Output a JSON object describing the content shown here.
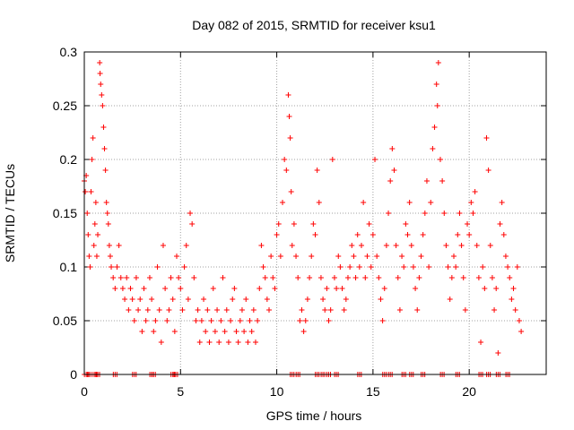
{
  "chart_data": {
    "type": "scatter",
    "title": "Day 082 of 2015, SRMTID for receiver ksu1",
    "xlabel": "GPS time / hours",
    "ylabel": "SRMTID / TECUs",
    "xlim": [
      0,
      24
    ],
    "ylim": [
      0,
      0.3
    ],
    "grid": true,
    "marker": "+",
    "x_ticks": [
      {
        "value": 0,
        "label": "0"
      },
      {
        "value": 5,
        "label": "5"
      },
      {
        "value": 10,
        "label": "10"
      },
      {
        "value": 15,
        "label": "15"
      },
      {
        "value": 20,
        "label": "20"
      }
    ],
    "y_ticks": [
      {
        "value": 0,
        "label": "0"
      },
      {
        "value": 0.05,
        "label": "0.05"
      },
      {
        "value": 0.1,
        "label": "0.1"
      },
      {
        "value": 0.15,
        "label": "0.15"
      },
      {
        "value": 0.2,
        "label": "0.2"
      },
      {
        "value": 0.25,
        "label": "0.25"
      },
      {
        "value": 0.3,
        "label": "0.3"
      }
    ],
    "series": [
      {
        "name": "SRMTID",
        "color": "#ff0000",
        "points": [
          [
            0.0,
            0.18
          ],
          [
            0.05,
            0.17
          ],
          [
            0.1,
            0.185
          ],
          [
            0.15,
            0.15
          ],
          [
            0.2,
            0.13
          ],
          [
            0.25,
            0.11
          ],
          [
            0.3,
            0.1
          ],
          [
            0.35,
            0.17
          ],
          [
            0.4,
            0.2
          ],
          [
            0.45,
            0.22
          ],
          [
            0.5,
            0.12
          ],
          [
            0.55,
            0.14
          ],
          [
            0.6,
            0.16
          ],
          [
            0.65,
            0.11
          ],
          [
            0.7,
            0.13
          ],
          [
            0.8,
            0.29
          ],
          [
            0.82,
            0.28
          ],
          [
            0.85,
            0.27
          ],
          [
            0.9,
            0.26
          ],
          [
            0.95,
            0.25
          ],
          [
            1.0,
            0.23
          ],
          [
            1.05,
            0.21
          ],
          [
            1.1,
            0.19
          ],
          [
            1.15,
            0.16
          ],
          [
            1.2,
            0.15
          ],
          [
            1.25,
            0.14
          ],
          [
            1.3,
            0.12
          ],
          [
            1.35,
            0.11
          ],
          [
            1.4,
            0.1
          ],
          [
            1.5,
            0.09
          ],
          [
            1.6,
            0.08
          ],
          [
            1.7,
            0.1
          ],
          [
            1.8,
            0.12
          ],
          [
            1.9,
            0.09
          ],
          [
            2.0,
            0.08
          ],
          [
            2.1,
            0.07
          ],
          [
            2.2,
            0.09
          ],
          [
            2.3,
            0.06
          ],
          [
            2.4,
            0.08
          ],
          [
            2.5,
            0.07
          ],
          [
            2.6,
            0.05
          ],
          [
            2.7,
            0.09
          ],
          [
            2.8,
            0.06
          ],
          [
            2.9,
            0.07
          ],
          [
            3.0,
            0.04
          ],
          [
            3.1,
            0.08
          ],
          [
            3.2,
            0.05
          ],
          [
            3.3,
            0.06
          ],
          [
            3.4,
            0.09
          ],
          [
            3.5,
            0.07
          ],
          [
            3.6,
            0.04
          ],
          [
            3.7,
            0.05
          ],
          [
            3.8,
            0.1
          ],
          [
            3.9,
            0.06
          ],
          [
            4.0,
            0.03
          ],
          [
            4.1,
            0.12
          ],
          [
            4.2,
            0.08
          ],
          [
            4.3,
            0.05
          ],
          [
            4.4,
            0.06
          ],
          [
            4.5,
            0.09
          ],
          [
            4.6,
            0.07
          ],
          [
            4.7,
            0.04
          ],
          [
            4.8,
            0.11
          ],
          [
            4.9,
            0.09
          ],
          [
            5.0,
            0.08
          ],
          [
            5.1,
            0.06
          ],
          [
            5.2,
            0.1
          ],
          [
            5.3,
            0.12
          ],
          [
            5.4,
            0.07
          ],
          [
            5.5,
            0.15
          ],
          [
            5.6,
            0.14
          ],
          [
            5.7,
            0.09
          ],
          [
            5.8,
            0.05
          ],
          [
            5.9,
            0.06
          ],
          [
            6.0,
            0.03
          ],
          [
            6.1,
            0.05
          ],
          [
            6.2,
            0.07
          ],
          [
            6.3,
            0.04
          ],
          [
            6.4,
            0.06
          ],
          [
            6.5,
            0.03
          ],
          [
            6.6,
            0.05
          ],
          [
            6.7,
            0.08
          ],
          [
            6.8,
            0.04
          ],
          [
            6.9,
            0.06
          ],
          [
            7.0,
            0.03
          ],
          [
            7.1,
            0.05
          ],
          [
            7.2,
            0.09
          ],
          [
            7.3,
            0.04
          ],
          [
            7.4,
            0.06
          ],
          [
            7.5,
            0.03
          ],
          [
            7.6,
            0.05
          ],
          [
            7.7,
            0.07
          ],
          [
            7.8,
            0.08
          ],
          [
            7.9,
            0.04
          ],
          [
            8.0,
            0.03
          ],
          [
            8.1,
            0.05
          ],
          [
            8.2,
            0.06
          ],
          [
            8.3,
            0.04
          ],
          [
            8.4,
            0.07
          ],
          [
            8.5,
            0.03
          ],
          [
            8.6,
            0.05
          ],
          [
            8.7,
            0.04
          ],
          [
            8.8,
            0.06
          ],
          [
            8.9,
            0.03
          ],
          [
            9.0,
            0.05
          ],
          [
            9.1,
            0.08
          ],
          [
            9.2,
            0.12
          ],
          [
            9.3,
            0.1
          ],
          [
            9.4,
            0.09
          ],
          [
            9.5,
            0.07
          ],
          [
            9.6,
            0.06
          ],
          [
            9.7,
            0.11
          ],
          [
            9.8,
            0.09
          ],
          [
            9.9,
            0.08
          ],
          [
            10.0,
            0.13
          ],
          [
            10.1,
            0.14
          ],
          [
            10.2,
            0.11
          ],
          [
            10.3,
            0.16
          ],
          [
            10.4,
            0.2
          ],
          [
            10.5,
            0.19
          ],
          [
            10.6,
            0.26
          ],
          [
            10.65,
            0.24
          ],
          [
            10.7,
            0.22
          ],
          [
            10.75,
            0.17
          ],
          [
            10.8,
            0.12
          ],
          [
            10.9,
            0.14
          ],
          [
            11.0,
            0.11
          ],
          [
            11.1,
            0.09
          ],
          [
            11.2,
            0.05
          ],
          [
            11.3,
            0.06
          ],
          [
            11.4,
            0.04
          ],
          [
            11.5,
            0.05
          ],
          [
            11.6,
            0.07
          ],
          [
            11.7,
            0.09
          ],
          [
            11.8,
            0.11
          ],
          [
            11.9,
            0.14
          ],
          [
            12.0,
            0.13
          ],
          [
            12.1,
            0.19
          ],
          [
            12.2,
            0.16
          ],
          [
            12.3,
            0.09
          ],
          [
            12.4,
            0.07
          ],
          [
            12.5,
            0.06
          ],
          [
            12.6,
            0.08
          ],
          [
            12.7,
            0.05
          ],
          [
            12.8,
            0.06
          ],
          [
            12.9,
            0.2
          ],
          [
            13.0,
            0.09
          ],
          [
            13.1,
            0.08
          ],
          [
            13.2,
            0.11
          ],
          [
            13.3,
            0.1
          ],
          [
            13.4,
            0.08
          ],
          [
            13.5,
            0.06
          ],
          [
            13.6,
            0.07
          ],
          [
            13.7,
            0.09
          ],
          [
            13.8,
            0.1
          ],
          [
            13.9,
            0.12
          ],
          [
            14.0,
            0.11
          ],
          [
            14.1,
            0.09
          ],
          [
            14.2,
            0.13
          ],
          [
            14.3,
            0.1
          ],
          [
            14.4,
            0.12
          ],
          [
            14.5,
            0.16
          ],
          [
            14.6,
            0.09
          ],
          [
            14.7,
            0.11
          ],
          [
            14.8,
            0.14
          ],
          [
            14.9,
            0.1
          ],
          [
            15.0,
            0.13
          ],
          [
            15.1,
            0.2
          ],
          [
            15.2,
            0.11
          ],
          [
            15.3,
            0.09
          ],
          [
            15.4,
            0.07
          ],
          [
            15.5,
            0.05
          ],
          [
            15.6,
            0.08
          ],
          [
            15.7,
            0.12
          ],
          [
            15.8,
            0.15
          ],
          [
            15.9,
            0.18
          ],
          [
            16.0,
            0.21
          ],
          [
            16.1,
            0.19
          ],
          [
            16.2,
            0.12
          ],
          [
            16.3,
            0.09
          ],
          [
            16.4,
            0.06
          ],
          [
            16.5,
            0.11
          ],
          [
            16.6,
            0.1
          ],
          [
            16.7,
            0.14
          ],
          [
            16.8,
            0.13
          ],
          [
            16.9,
            0.16
          ],
          [
            17.0,
            0.12
          ],
          [
            17.1,
            0.1
          ],
          [
            17.2,
            0.08
          ],
          [
            17.3,
            0.06
          ],
          [
            17.4,
            0.09
          ],
          [
            17.5,
            0.11
          ],
          [
            17.6,
            0.13
          ],
          [
            17.7,
            0.15
          ],
          [
            17.8,
            0.18
          ],
          [
            17.9,
            0.1
          ],
          [
            18.0,
            0.16
          ],
          [
            18.1,
            0.21
          ],
          [
            18.2,
            0.23
          ],
          [
            18.3,
            0.27
          ],
          [
            18.35,
            0.25
          ],
          [
            18.4,
            0.29
          ],
          [
            18.5,
            0.2
          ],
          [
            18.6,
            0.18
          ],
          [
            18.7,
            0.15
          ],
          [
            18.8,
            0.12
          ],
          [
            18.9,
            0.1
          ],
          [
            19.0,
            0.07
          ],
          [
            19.1,
            0.09
          ],
          [
            19.2,
            0.11
          ],
          [
            19.3,
            0.1
          ],
          [
            19.4,
            0.13
          ],
          [
            19.5,
            0.15
          ],
          [
            19.6,
            0.12
          ],
          [
            19.7,
            0.09
          ],
          [
            19.8,
            0.06
          ],
          [
            19.9,
            0.14
          ],
          [
            20.0,
            0.13
          ],
          [
            20.1,
            0.16
          ],
          [
            20.2,
            0.15
          ],
          [
            20.3,
            0.17
          ],
          [
            20.4,
            0.12
          ],
          [
            20.5,
            0.09
          ],
          [
            20.6,
            0.03
          ],
          [
            20.7,
            0.1
          ],
          [
            20.8,
            0.08
          ],
          [
            20.9,
            0.22
          ],
          [
            21.0,
            0.19
          ],
          [
            21.1,
            0.12
          ],
          [
            21.2,
            0.09
          ],
          [
            21.3,
            0.06
          ],
          [
            21.4,
            0.08
          ],
          [
            21.5,
            0.02
          ],
          [
            21.6,
            0.14
          ],
          [
            21.7,
            0.16
          ],
          [
            21.8,
            0.13
          ],
          [
            21.9,
            0.11
          ],
          [
            22.0,
            0.1
          ],
          [
            22.1,
            0.09
          ],
          [
            22.2,
            0.07
          ],
          [
            22.3,
            0.08
          ],
          [
            22.4,
            0.06
          ],
          [
            22.5,
            0.1
          ],
          [
            22.6,
            0.05
          ],
          [
            22.7,
            0.04
          ]
        ]
      },
      {
        "name": "baseline",
        "color": "#ff0000",
        "y": 0,
        "x": [
          0.1,
          0.25,
          0.55,
          0.7,
          1.6,
          2.6,
          3.5,
          3.6,
          4.6,
          4.75,
          10.8,
          11.1,
          12.1,
          12.4,
          12.7,
          13.1,
          14.3,
          15.6,
          15.9,
          16.6,
          17.0,
          17.6,
          18.6,
          19.4,
          20.6,
          21.0,
          21.5,
          22.0
        ]
      }
    ]
  }
}
